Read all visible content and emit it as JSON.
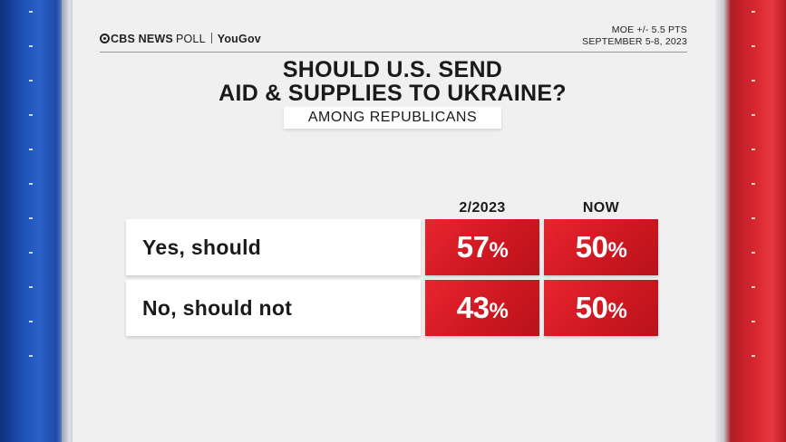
{
  "header": {
    "brand": "CBS NEWS",
    "poll": "POLL",
    "partner": "YouGov",
    "moe": "MOE +/- 5.5 PTS",
    "dates": "SEPTEMBER 5-8, 2023"
  },
  "title_line1": "SHOULD U.S. SEND",
  "title_line2": "AID & SUPPLIES TO UKRAINE?",
  "subtitle": "AMONG REPUBLICANS",
  "colors": {
    "accent": "#d81f28",
    "panel": "#f0f0f0"
  },
  "chart_data": {
    "type": "table",
    "title": "SHOULD U.S. SEND AID & SUPPLIES TO UKRAINE?",
    "subtitle": "AMONG REPUBLICANS",
    "columns": [
      "2/2023",
      "NOW"
    ],
    "rows": [
      {
        "label": "Yes, should",
        "values": [
          57,
          50
        ]
      },
      {
        "label": "No, should not",
        "values": [
          43,
          50
        ]
      }
    ],
    "unit": "%"
  }
}
